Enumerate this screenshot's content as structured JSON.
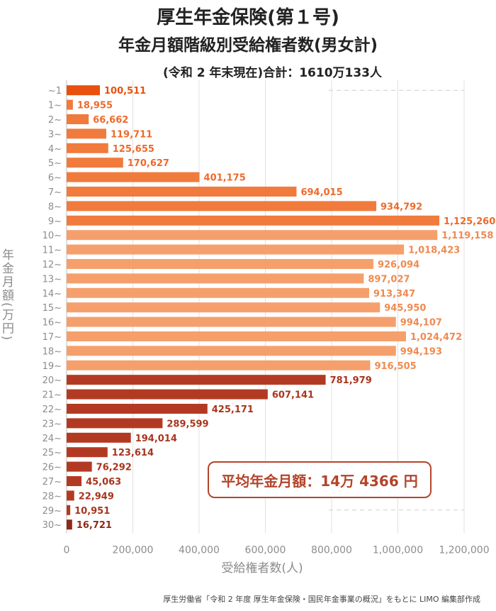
{
  "header": {
    "title_line1": "厚生年金保険(第１号)",
    "title_line2": "年金月額階級別受給権者数(男女計)",
    "subtitle": "(令和 2 年末現在)合計：1610万133人"
  },
  "average_box": {
    "text": "平均年金月額：14万 4366 円"
  },
  "source": "厚生労働省「令和 2 年度 厚生年金保険・国民年金事業の概況」をもとに LIMO 編集部作成",
  "colors": {
    "top_bar": "#e8500e",
    "mid_orange": "#f07b3c",
    "light_orange": "#f5a06c",
    "dark_red": "#b33a22",
    "grid": "#e0e0e0"
  },
  "chart_data": {
    "type": "bar",
    "orientation": "horizontal",
    "title": "厚生年金保険(第１号) 年金月額階級別受給権者数(男女計)",
    "xlabel": "受給権者数(人)",
    "ylabel": "年金月額(万円)",
    "xlim": [
      0,
      1200000
    ],
    "xticks": [
      "0",
      "200,000",
      "400,000",
      "600,000",
      "800,000",
      "1,000,000",
      "1,200,000"
    ],
    "categories": [
      "~1",
      "1~",
      "2~",
      "3~",
      "4~",
      "5~",
      "6~",
      "7~",
      "8~",
      "9~",
      "10~",
      "11~",
      "12~",
      "13~",
      "14~",
      "15~",
      "16~",
      "17~",
      "18~",
      "19~",
      "20~",
      "21~",
      "22~",
      "23~",
      "24~",
      "25~",
      "26~",
      "27~",
      "28~",
      "29~",
      "30~"
    ],
    "values": [
      100511,
      18955,
      66662,
      119711,
      125655,
      170627,
      401175,
      694015,
      934792,
      1125260,
      1119158,
      1018423,
      926094,
      897027,
      913347,
      945950,
      994107,
      1024472,
      994193,
      916505,
      781979,
      607141,
      425171,
      289599,
      194014,
      123614,
      76292,
      45063,
      22949,
      10951,
      16721
    ],
    "value_labels": [
      "100,511",
      "18,955",
      "66,662",
      "119,711",
      "125,655",
      "170,627",
      "401,175",
      "694,015",
      "934,792",
      "1,125,260",
      "1,119,158",
      "1,018,423",
      "926,094",
      "897,027",
      "913,347",
      "945,950",
      "994,107",
      "1,024,472",
      "994,193",
      "916,505",
      "781,979",
      "607,141",
      "425,171",
      "289,599",
      "194,014",
      "123,614",
      "76,292",
      "45,063",
      "22,949",
      "10,951",
      "16,721"
    ],
    "color_groups": [
      "top",
      "mid",
      "mid",
      "mid",
      "mid",
      "mid",
      "mid",
      "mid",
      "mid",
      "mid",
      "light",
      "light",
      "light",
      "light",
      "light",
      "light",
      "light",
      "light",
      "light",
      "light",
      "dark",
      "dark",
      "dark",
      "dark",
      "dark",
      "dark",
      "dark",
      "dark",
      "dark",
      "dark",
      "darkest"
    ],
    "grid": true
  }
}
